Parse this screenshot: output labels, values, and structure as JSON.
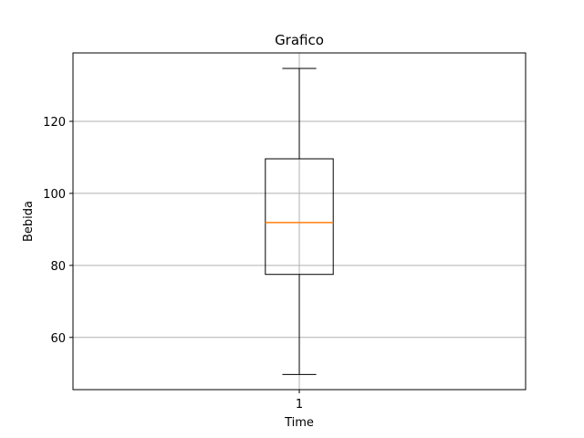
{
  "chart_data": {
    "type": "boxplot",
    "title": "Grafico",
    "xlabel": "Time",
    "ylabel": "Bebida",
    "ylim": [
      45.5,
      139
    ],
    "yticks": [
      60,
      80,
      100,
      120
    ],
    "categories": [
      "1"
    ],
    "boxes": [
      {
        "category": "1",
        "whisker_low": 49.7,
        "q1": 77.5,
        "median": 91.9,
        "q3": 109.6,
        "whisker_high": 134.7
      }
    ],
    "grid": true,
    "colors": {
      "box": "#000000",
      "median": "#ff7f0e",
      "grid": "#b0b0b0"
    }
  }
}
